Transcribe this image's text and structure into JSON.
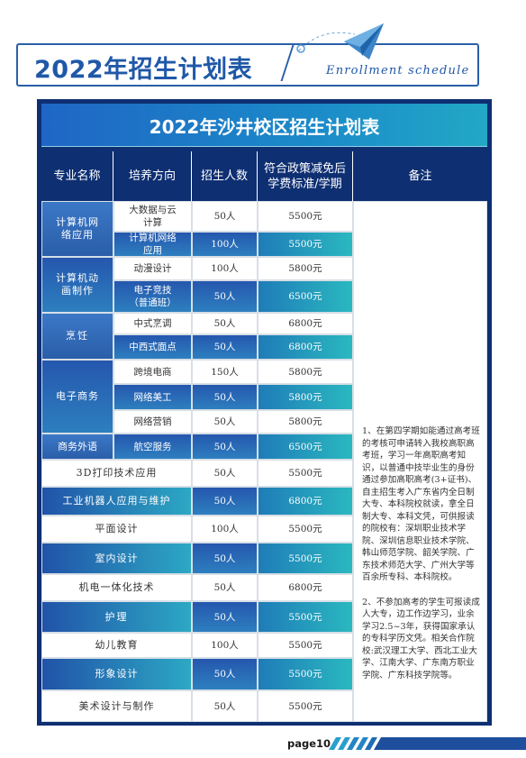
{
  "header": {
    "title": "2022年招生计划表",
    "subtitle_en": "Enrollment schedule"
  },
  "table": {
    "title": "2022年沙井校区招生计划表",
    "columns": [
      "专业名称",
      "培养方向",
      "招生人数",
      "符合政策减免后学费标准/学期",
      "备注"
    ],
    "rows": [
      {
        "major": "计算机网络应用",
        "direction": "大数据与云计算",
        "count": "50人",
        "fee": "5500元"
      },
      {
        "major": "",
        "direction": "计算机网络应用",
        "count": "100人",
        "fee": "5500元"
      },
      {
        "major": "计算机动画制作",
        "direction": "动漫设计",
        "count": "100人",
        "fee": "5800元"
      },
      {
        "major": "",
        "direction": "电子竞技（普通班）",
        "count": "50人",
        "fee": "6500元"
      },
      {
        "major": "烹饪",
        "direction": "中式烹调",
        "count": "50人",
        "fee": "6800元"
      },
      {
        "major": "",
        "direction": "中西式面点",
        "count": "50人",
        "fee": "6800元"
      },
      {
        "major": "电子商务",
        "direction": "跨境电商",
        "count": "150人",
        "fee": "5800元"
      },
      {
        "major": "",
        "direction": "网络美工",
        "count": "50人",
        "fee": "5800元"
      },
      {
        "major": "",
        "direction": "网络营销",
        "count": "50人",
        "fee": "5800元"
      },
      {
        "major": "商务外语",
        "direction": "航空服务",
        "count": "50人",
        "fee": "6500元"
      },
      {
        "major": "3D打印技术应用",
        "direction": "",
        "count": "50人",
        "fee": "5500元"
      },
      {
        "major": "工业机器人应用与维护",
        "direction": "",
        "count": "50人",
        "fee": "6800元"
      },
      {
        "major": "平面设计",
        "direction": "",
        "count": "100人",
        "fee": "5500元"
      },
      {
        "major": "室内设计",
        "direction": "",
        "count": "50人",
        "fee": "5500元"
      },
      {
        "major": "机电一体化技术",
        "direction": "",
        "count": "50人",
        "fee": "6800元"
      },
      {
        "major": "护理",
        "direction": "",
        "count": "50人",
        "fee": "5500元"
      },
      {
        "major": "幼儿教育",
        "direction": "",
        "count": "100人",
        "fee": "5500元"
      },
      {
        "major": "形象设计",
        "direction": "",
        "count": "50人",
        "fee": "5500元"
      },
      {
        "major": "美术设计与制作",
        "direction": "",
        "count": "50人",
        "fee": "5500元"
      }
    ],
    "notes": [
      "1、在第四学期如能通过高考班的考核可申请转入我校高职高考班，学习一年高职高考知识，以普通中技毕业生的身份通过参加高职高考(3+证书)、自主招生考入广东省内全日制大专、本科院校就读，拿全日制大专、本科文凭，可供报读的院校有：深圳职业技术学院、深圳信息职业技术学院、韩山师范学院、韶关学院、广东技术师范大学、广州大学等百余所专科、本科院校。",
      "2、不参加高考的学生可报读成人大专，边工作边学习，业余学习2.5~3年，获得国家承认的专科学历文凭。相关合作院校:武汉理工大学、西北工业大学、江南大学、广东南方职业学院、广东科技学院等。"
    ]
  },
  "footer": {
    "page": "page10"
  },
  "colors": {
    "navy": "#0e2f72",
    "blue": "#2557ae",
    "teal": "#2ab8c0",
    "title_blue": "#1f58a8"
  }
}
